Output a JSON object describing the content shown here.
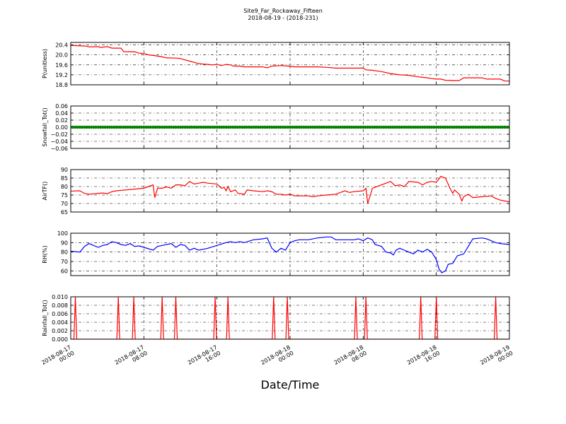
{
  "figure": {
    "title": "Site9_Far_Rockaway_Fifteen",
    "subtitle": "2018-08-19 - (2018-231)",
    "xlabel": "Date/Time"
  },
  "chart_data": {
    "type": "line",
    "x_range": [
      "2018-08-17 00:00",
      "2018-08-19 00:00"
    ],
    "x_ticks": [
      {
        "l1": "2018-08-17",
        "l2": "00:00",
        "h": 0
      },
      {
        "l1": "2018-08-17",
        "l2": "08:00",
        "h": 8
      },
      {
        "l1": "2018-08-17",
        "l2": "16:00",
        "h": 16
      },
      {
        "l1": "2018-08-18",
        "l2": "00:00",
        "h": 24
      },
      {
        "l1": "2018-08-18",
        "l2": "08:00",
        "h": 32
      },
      {
        "l1": "2018-08-18",
        "l2": "16:00",
        "h": 40
      },
      {
        "l1": "2018-08-19",
        "l2": "00:00",
        "h": 48
      }
    ],
    "grid": "dashed",
    "panels": [
      {
        "ylabel": "P(unitless)",
        "color": "#ff0000",
        "ylim": [
          18.8,
          20.5
        ],
        "yticks": [
          18.8,
          19.2,
          19.6,
          20.0,
          20.4
        ],
        "tick_labels": [
          "18.8",
          "19.2",
          "19.6",
          "20.0",
          "20.4"
        ],
        "kind": "line",
        "points": [
          [
            -0.1,
            20.38
          ],
          [
            1.7,
            20.35
          ],
          [
            2.0,
            20.32
          ],
          [
            3.0,
            20.33
          ],
          [
            3.3,
            20.3
          ],
          [
            4.0,
            20.33
          ],
          [
            4.5,
            20.27
          ],
          [
            5.0,
            20.27
          ],
          [
            5.5,
            20.27
          ],
          [
            5.8,
            20.13
          ],
          [
            7.0,
            20.12
          ],
          [
            7.5,
            20.07
          ],
          [
            8.0,
            20.05
          ],
          [
            8.5,
            20.0
          ],
          [
            9.0,
            19.98
          ],
          [
            9.5,
            19.95
          ],
          [
            10.0,
            19.92
          ],
          [
            10.5,
            19.88
          ],
          [
            11.5,
            19.87
          ],
          [
            12.0,
            19.85
          ],
          [
            12.5,
            19.8
          ],
          [
            13.0,
            19.75
          ],
          [
            13.5,
            19.7
          ],
          [
            14.0,
            19.65
          ],
          [
            14.5,
            19.63
          ],
          [
            15.0,
            19.62
          ],
          [
            15.5,
            19.6
          ],
          [
            16.0,
            19.62
          ],
          [
            16.5,
            19.57
          ],
          [
            17.0,
            19.62
          ],
          [
            17.5,
            19.6
          ],
          [
            17.8,
            19.55
          ],
          [
            18.5,
            19.55
          ],
          [
            19.0,
            19.52
          ],
          [
            20.0,
            19.52
          ],
          [
            21.0,
            19.52
          ],
          [
            21.5,
            19.48
          ],
          [
            22.0,
            19.55
          ],
          [
            23.0,
            19.57
          ],
          [
            23.8,
            19.55
          ],
          [
            24.5,
            19.52
          ],
          [
            25.0,
            19.52
          ],
          [
            26.0,
            19.52
          ],
          [
            27.0,
            19.52
          ],
          [
            28.0,
            19.5
          ],
          [
            29.0,
            19.47
          ],
          [
            30.0,
            19.47
          ],
          [
            31.0,
            19.47
          ],
          [
            32.0,
            19.47
          ],
          [
            32.3,
            19.4
          ],
          [
            33.0,
            19.38
          ],
          [
            34.0,
            19.33
          ],
          [
            35.0,
            19.25
          ],
          [
            36.0,
            19.2
          ],
          [
            37.0,
            19.18
          ],
          [
            38.0,
            19.12
          ],
          [
            38.5,
            19.1
          ],
          [
            39.0,
            19.08
          ],
          [
            39.5,
            19.05
          ],
          [
            40.0,
            19.03
          ],
          [
            40.5,
            19.03
          ],
          [
            41.0,
            18.98
          ],
          [
            42.0,
            18.97
          ],
          [
            42.5,
            18.97
          ],
          [
            43.0,
            19.08
          ],
          [
            44.0,
            19.08
          ],
          [
            45.0,
            19.08
          ],
          [
            45.5,
            19.03
          ],
          [
            46.5,
            19.03
          ],
          [
            47.0,
            19.03
          ],
          [
            47.5,
            18.95
          ],
          [
            48.0,
            18.95
          ],
          [
            48.5,
            18.95
          ]
        ]
      },
      {
        "ylabel": "Snowfall_Tot()",
        "color": "#008000",
        "ylim": [
          -0.06,
          0.06
        ],
        "yticks": [
          -0.06,
          -0.04,
          -0.02,
          0.0,
          0.02,
          0.04,
          0.06
        ],
        "tick_labels": [
          "−0.06",
          "−0.04",
          "−0.02",
          "0.00",
          "0.02",
          "0.04",
          "0.06"
        ],
        "kind": "markers",
        "constant": 0.0,
        "x_start": 0.0,
        "x_end": 48.0,
        "step_hours": 0.25
      },
      {
        "ylabel": "AirTF()",
        "color": "#ff0000",
        "ylim": [
          65,
          90
        ],
        "yticks": [
          65,
          70,
          75,
          80,
          85,
          90
        ],
        "tick_labels": [
          "65",
          "70",
          "75",
          "80",
          "85",
          "90"
        ],
        "kind": "line",
        "points": [
          [
            -0.1,
            77.3
          ],
          [
            1.0,
            77.5
          ],
          [
            1.5,
            76.0
          ],
          [
            2.0,
            75.5
          ],
          [
            3.0,
            76.0
          ],
          [
            3.5,
            76.2
          ],
          [
            4.0,
            75.8
          ],
          [
            4.5,
            77.0
          ],
          [
            5.0,
            77.5
          ],
          [
            6.0,
            78.0
          ],
          [
            7.0,
            78.5
          ],
          [
            8.0,
            79.0
          ],
          [
            8.5,
            80.0
          ],
          [
            9.0,
            81.0
          ],
          [
            9.2,
            73.5
          ],
          [
            9.5,
            79.0
          ],
          [
            10.0,
            79.0
          ],
          [
            10.5,
            79.8
          ],
          [
            11.0,
            79.0
          ],
          [
            11.5,
            81.0
          ],
          [
            12.0,
            81.0
          ],
          [
            12.5,
            80.5
          ],
          [
            13.0,
            83.0
          ],
          [
            13.5,
            81.5
          ],
          [
            14.0,
            82.0
          ],
          [
            14.5,
            82.5
          ],
          [
            15.0,
            82.0
          ],
          [
            16.0,
            81.5
          ],
          [
            16.5,
            79.0
          ],
          [
            16.8,
            79.5
          ],
          [
            17.0,
            77.5
          ],
          [
            17.2,
            80.0
          ],
          [
            17.5,
            77.0
          ],
          [
            18.0,
            78.0
          ],
          [
            18.3,
            76.0
          ],
          [
            19.0,
            75.5
          ],
          [
            19.3,
            78.0
          ],
          [
            20.0,
            77.5
          ],
          [
            21.0,
            77.0
          ],
          [
            21.5,
            77.5
          ],
          [
            22.0,
            77.0
          ],
          [
            22.5,
            75.5
          ],
          [
            23.0,
            75.5
          ],
          [
            23.5,
            75.0
          ],
          [
            24.0,
            75.5
          ],
          [
            24.5,
            74.5
          ],
          [
            25.0,
            74.5
          ],
          [
            26.0,
            74.5
          ],
          [
            26.5,
            74.0
          ],
          [
            27.0,
            74.5
          ],
          [
            28.0,
            75.0
          ],
          [
            29.0,
            75.5
          ],
          [
            29.5,
            76.5
          ],
          [
            30.0,
            77.5
          ],
          [
            30.5,
            76.5
          ],
          [
            31.0,
            77.0
          ],
          [
            32.0,
            77.5
          ],
          [
            32.3,
            79.0
          ],
          [
            32.5,
            70.0
          ],
          [
            33.0,
            79.0
          ],
          [
            34.0,
            81.0
          ],
          [
            34.5,
            82.0
          ],
          [
            35.0,
            83.0
          ],
          [
            35.5,
            80.5
          ],
          [
            36.0,
            81.0
          ],
          [
            36.5,
            80.0
          ],
          [
            37.0,
            83.0
          ],
          [
            38.0,
            82.5
          ],
          [
            38.5,
            81.0
          ],
          [
            39.0,
            82.5
          ],
          [
            39.5,
            83.0
          ],
          [
            40.0,
            82.5
          ],
          [
            40.5,
            86.0
          ],
          [
            41.0,
            85.0
          ],
          [
            41.5,
            79.0
          ],
          [
            41.8,
            76.0
          ],
          [
            42.0,
            78.0
          ],
          [
            42.5,
            75.5
          ],
          [
            42.8,
            71.5
          ],
          [
            43.0,
            74.0
          ],
          [
            43.5,
            75.5
          ],
          [
            44.0,
            73.5
          ],
          [
            45.0,
            74.0
          ],
          [
            46.0,
            74.5
          ],
          [
            46.5,
            73.0
          ],
          [
            47.0,
            72.0
          ],
          [
            47.5,
            71.5
          ],
          [
            48.0,
            71.0
          ],
          [
            48.5,
            70.5
          ]
        ]
      },
      {
        "ylabel": "RH(%)",
        "color": "#0000ff",
        "ylim": [
          55,
          100
        ],
        "yticks": [
          60,
          70,
          80,
          90,
          100
        ],
        "tick_labels": [
          "60",
          "70",
          "80",
          "90",
          "100"
        ],
        "kind": "line",
        "points": [
          [
            -0.1,
            81.0
          ],
          [
            1.0,
            80.0
          ],
          [
            1.5,
            86.0
          ],
          [
            2.0,
            89.0
          ],
          [
            3.0,
            85.0
          ],
          [
            3.5,
            87.0
          ],
          [
            4.0,
            88.0
          ],
          [
            4.5,
            91.0
          ],
          [
            5.0,
            90.0
          ],
          [
            5.5,
            88.0
          ],
          [
            6.0,
            87.0
          ],
          [
            6.5,
            89.0
          ],
          [
            7.0,
            86.0
          ],
          [
            7.5,
            86.5
          ],
          [
            8.0,
            85.0
          ],
          [
            9.0,
            82.0
          ],
          [
            9.5,
            86.0
          ],
          [
            10.0,
            87.0
          ],
          [
            11.0,
            89.0
          ],
          [
            11.5,
            85.0
          ],
          [
            12.0,
            88.0
          ],
          [
            12.5,
            87.0
          ],
          [
            13.0,
            82.0
          ],
          [
            13.5,
            84.0
          ],
          [
            14.0,
            82.0
          ],
          [
            14.5,
            83.0
          ],
          [
            15.0,
            84.0
          ],
          [
            16.0,
            87.0
          ],
          [
            17.0,
            90.0
          ],
          [
            17.5,
            91.0
          ],
          [
            18.0,
            90.0
          ],
          [
            18.5,
            91.0
          ],
          [
            19.0,
            90.0
          ],
          [
            20.0,
            93.0
          ],
          [
            21.0,
            94.0
          ],
          [
            21.5,
            95.0
          ],
          [
            22.0,
            84.0
          ],
          [
            22.5,
            80.0
          ],
          [
            23.0,
            84.0
          ],
          [
            23.5,
            82.0
          ],
          [
            24.0,
            90.0
          ],
          [
            24.5,
            92.0
          ],
          [
            25.0,
            93.0
          ],
          [
            26.0,
            93.0
          ],
          [
            27.0,
            95.0
          ],
          [
            28.0,
            96.0
          ],
          [
            28.5,
            96.0
          ],
          [
            29.0,
            93.0
          ],
          [
            30.0,
            93.0
          ],
          [
            31.0,
            93.0
          ],
          [
            31.5,
            94.0
          ],
          [
            32.0,
            92.0
          ],
          [
            32.5,
            95.0
          ],
          [
            33.0,
            93.0
          ],
          [
            33.3,
            88.0
          ],
          [
            34.0,
            86.0
          ],
          [
            34.5,
            80.0
          ],
          [
            35.0,
            79.0
          ],
          [
            35.3,
            77.0
          ],
          [
            35.6,
            82.0
          ],
          [
            36.0,
            84.0
          ],
          [
            36.5,
            82.0
          ],
          [
            37.0,
            80.0
          ],
          [
            37.5,
            78.0
          ],
          [
            38.0,
            82.0
          ],
          [
            38.5,
            80.0
          ],
          [
            39.0,
            83.0
          ],
          [
            39.5,
            80.0
          ],
          [
            40.0,
            72.0
          ],
          [
            40.3,
            62.0
          ],
          [
            40.6,
            58.0
          ],
          [
            41.0,
            60.0
          ],
          [
            41.3,
            67.0
          ],
          [
            41.8,
            68.0
          ],
          [
            42.3,
            76.0
          ],
          [
            43.0,
            78.0
          ],
          [
            43.5,
            86.0
          ],
          [
            44.0,
            94.0
          ],
          [
            45.0,
            95.0
          ],
          [
            45.5,
            94.0
          ],
          [
            46.5,
            90.0
          ],
          [
            47.0,
            89.0
          ],
          [
            48.0,
            88.0
          ],
          [
            48.5,
            89.0
          ],
          [
            49.0,
            85.0
          ]
        ]
      },
      {
        "ylabel": "Rainfall_Tot()",
        "color": "#ff0000",
        "ylim": [
          0,
          0.01
        ],
        "yticks": [
          0,
          0.002,
          0.004,
          0.006,
          0.008,
          0.01
        ],
        "tick_labels": [
          "0.000",
          "0.002",
          "0.004",
          "0.006",
          "0.008",
          "0.010"
        ],
        "kind": "spikes",
        "spike_value": 0.01,
        "spike_hours": [
          0.5,
          5.2,
          6.9,
          10.0,
          11.5,
          15.8,
          17.2,
          22.2,
          23.7,
          31.2,
          32.3,
          38.3,
          40.0,
          46.5
        ]
      }
    ]
  }
}
